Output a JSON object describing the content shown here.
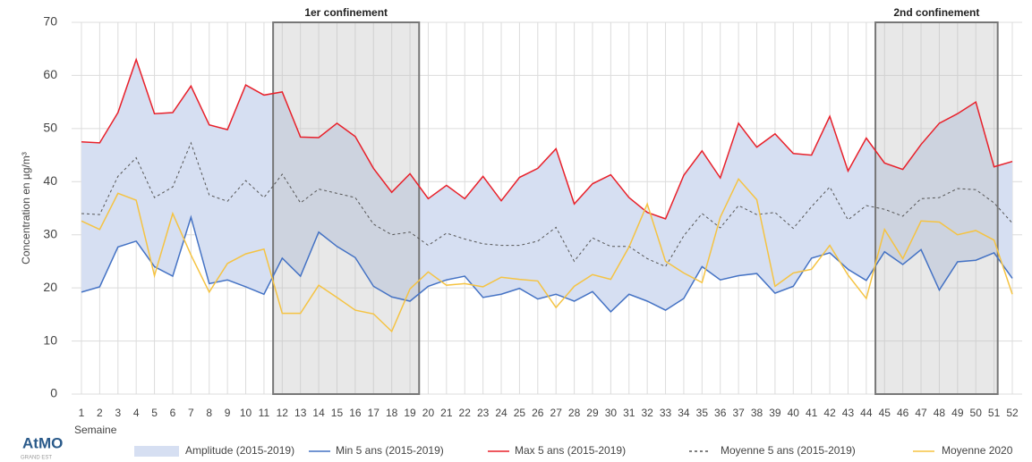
{
  "chart_data": {
    "type": "line",
    "y_label": "Concentration en µg/m³",
    "x_label": "Semaine",
    "logo": "AtMO",
    "logo_sub": "GRAND EST",
    "categories": [
      "1",
      "2",
      "3",
      "4",
      "5",
      "6",
      "7",
      "8",
      "9",
      "10",
      "11",
      "12",
      "13",
      "14",
      "15",
      "16",
      "17",
      "18",
      "19",
      "20",
      "21",
      "22",
      "23",
      "24",
      "25",
      "26",
      "27",
      "28",
      "29",
      "30",
      "31",
      "32",
      "33",
      "34",
      "35",
      "36",
      "37",
      "38",
      "39",
      "40",
      "41",
      "42",
      "43",
      "44",
      "45",
      "46",
      "47",
      "48",
      "49",
      "50",
      "51",
      "52"
    ],
    "band": {
      "name": "Amplitude (2015-2019)",
      "color": "#d6dff2"
    },
    "series": [
      {
        "name": "Min 5 ans (2015-2019)",
        "color": "#4472c4",
        "values": [
          19.2,
          20.2,
          27.7,
          28.8,
          24,
          22.2,
          33.3,
          20.8,
          21.5,
          20.2,
          18.8,
          25.6,
          22.2,
          30.5,
          27.8,
          25.7,
          20.3,
          18.3,
          17.5,
          20.3,
          21.5,
          22.2,
          18.2,
          18.8,
          19.9,
          17.9,
          18.8,
          17.5,
          19.3,
          15.5,
          18.8,
          17.5,
          15.8,
          18,
          24,
          21.5,
          22.3,
          22.7,
          19,
          20.3,
          25.6,
          26.6,
          23.5,
          21.4,
          26.8,
          24.4,
          27.2,
          19.6,
          24.9,
          25.2,
          26.6,
          21.8
        ]
      },
      {
        "name": "Max 5 ans (2015-2019)",
        "color": "#e8202a",
        "values": [
          47.5,
          47.3,
          53,
          63,
          52.8,
          53,
          58,
          50.7,
          49.8,
          58.2,
          56.3,
          56.9,
          48.4,
          48.3,
          51,
          48.5,
          42.5,
          38,
          41.5,
          36.8,
          39.3,
          36.8,
          41,
          36.4,
          40.8,
          42.5,
          46.2,
          35.8,
          39.6,
          41.3,
          37,
          34.2,
          33,
          41.2,
          45.8,
          40.7,
          51,
          46.5,
          49,
          45.3,
          45,
          52.3,
          42,
          48.2,
          43.5,
          42.3,
          47,
          51,
          52.8,
          55,
          42.8,
          43.8
        ]
      },
      {
        "name": "Moyenne 5 ans (2015-2019)",
        "color": "#555555",
        "dashed": true,
        "values": [
          34,
          33.8,
          41,
          44.5,
          37,
          39,
          47.3,
          37.5,
          36.3,
          40.2,
          37,
          41.4,
          36,
          38.6,
          37.8,
          37,
          32,
          30,
          30.5,
          28,
          30.3,
          29.2,
          28.3,
          28,
          28,
          28.8,
          31.4,
          25,
          29.4,
          27.8,
          27.8,
          25.5,
          24,
          29.8,
          34,
          31.3,
          35.5,
          33.8,
          34.2,
          31.2,
          35.3,
          39,
          32.8,
          35.5,
          34.8,
          33.5,
          36.8,
          37,
          38.7,
          38.5,
          36,
          32.2
        ]
      },
      {
        "name": "Moyenne 2020",
        "color": "#f5c342",
        "values": [
          32.6,
          31,
          37.8,
          36.5,
          22.3,
          34,
          26.2,
          19.2,
          24.6,
          26.4,
          27.3,
          15.2,
          15.2,
          20.5,
          18.2,
          15.8,
          15.1,
          11.8,
          19.8,
          23,
          20.5,
          20.8,
          20.2,
          22,
          21.6,
          21.3,
          16.3,
          20.3,
          22.5,
          21.6,
          27.7,
          35.8,
          25,
          22.8,
          21,
          33.3,
          40.5,
          36.6,
          20.3,
          22.8,
          23.5,
          28,
          22.4,
          18,
          31,
          25.5,
          32.6,
          32.4,
          30,
          30.8,
          29,
          18.8
        ]
      }
    ],
    "regions": [
      {
        "label": "1er confinement",
        "start": 11.5,
        "end": 19.5
      },
      {
        "label": "2nd confinement",
        "start": 44.5,
        "end": 51.2
      }
    ],
    "ylim": [
      0,
      70
    ],
    "yticks": [
      0,
      10,
      20,
      30,
      40,
      50,
      60,
      70
    ],
    "grid": true
  }
}
